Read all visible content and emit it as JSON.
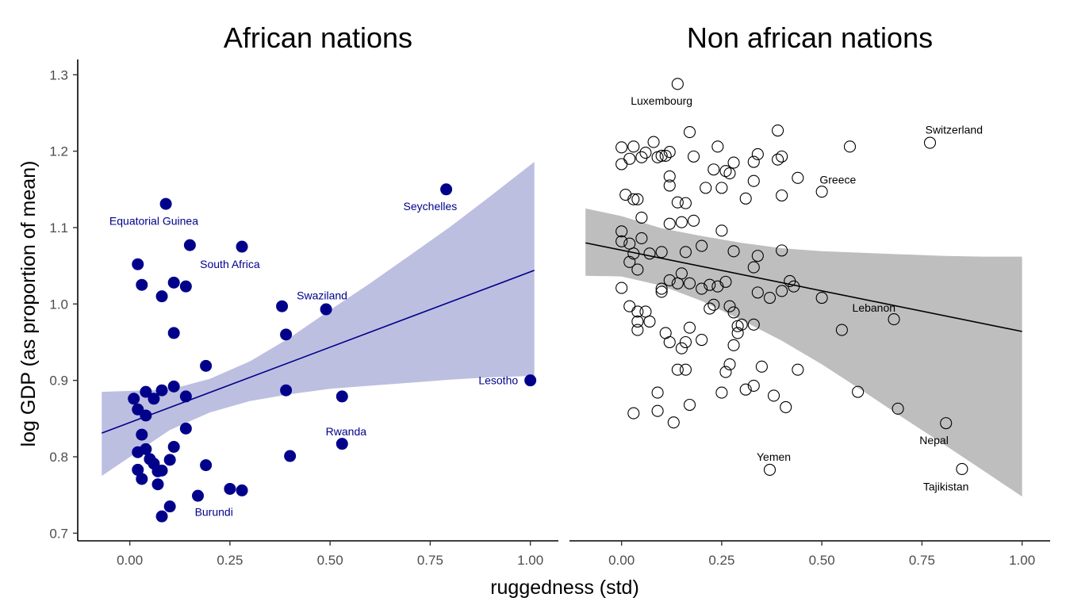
{
  "chart_data": {
    "type": "scatter",
    "xlabel": "ruggedness (std)",
    "ylabel": "log GDP (as proportion of mean)",
    "xlim": [
      -0.13,
      1.07
    ],
    "ylim": [
      0.69,
      1.32
    ],
    "x_ticks": [
      "0.00",
      "0.25",
      "0.50",
      "0.75",
      "1.00"
    ],
    "y_ticks": [
      "0.7",
      "0.8",
      "0.9",
      "1.0",
      "1.1",
      "1.2",
      "1.3"
    ],
    "grid": false,
    "panels": [
      {
        "title": "African nations",
        "point_style": "filled",
        "color": "#00008b",
        "band_color": "#bcbfe0",
        "points": [
          [
            0.09,
            1.131
          ],
          [
            0.79,
            1.15
          ],
          [
            0.15,
            1.077
          ],
          [
            0.28,
            1.075
          ],
          [
            0.02,
            1.052
          ],
          [
            0.03,
            1.025
          ],
          [
            0.11,
            1.028
          ],
          [
            0.14,
            1.023
          ],
          [
            0.08,
            1.01
          ],
          [
            0.38,
            0.997
          ],
          [
            0.49,
            0.993
          ],
          [
            0.39,
            0.96
          ],
          [
            0.11,
            0.962
          ],
          [
            0.19,
            0.919
          ],
          [
            1.0,
            0.9
          ],
          [
            0.04,
            0.885
          ],
          [
            0.08,
            0.887
          ],
          [
            0.11,
            0.892
          ],
          [
            0.39,
            0.887
          ],
          [
            0.53,
            0.879
          ],
          [
            0.01,
            0.876
          ],
          [
            0.06,
            0.876
          ],
          [
            0.14,
            0.879
          ],
          [
            0.02,
            0.862
          ],
          [
            0.04,
            0.854
          ],
          [
            0.14,
            0.837
          ],
          [
            0.03,
            0.829
          ],
          [
            0.53,
            0.817
          ],
          [
            0.11,
            0.813
          ],
          [
            0.04,
            0.81
          ],
          [
            0.02,
            0.806
          ],
          [
            0.05,
            0.797
          ],
          [
            0.1,
            0.796
          ],
          [
            0.4,
            0.801
          ],
          [
            0.06,
            0.791
          ],
          [
            0.07,
            0.781
          ],
          [
            0.08,
            0.782
          ],
          [
            0.19,
            0.789
          ],
          [
            0.02,
            0.783
          ],
          [
            0.03,
            0.771
          ],
          [
            0.07,
            0.764
          ],
          [
            0.25,
            0.758
          ],
          [
            0.28,
            0.756
          ],
          [
            0.17,
            0.749
          ],
          [
            0.1,
            0.735
          ],
          [
            0.08,
            0.722
          ]
        ],
        "labels": [
          {
            "text": "Equatorial Guinea",
            "x": 0.09,
            "y": 1.131,
            "dx": -0.03,
            "dy": -0.022
          },
          {
            "text": "Seychelles",
            "x": 0.79,
            "y": 1.15,
            "dx": -0.04,
            "dy": -0.022
          },
          {
            "text": "South Africa",
            "x": 0.15,
            "y": 1.077,
            "dx": 0.1,
            "dy": -0.025
          },
          {
            "text": "Swaziland",
            "x": 0.49,
            "y": 0.993,
            "dx": -0.01,
            "dy": 0.018
          },
          {
            "text": "Lesotho",
            "x": 1.0,
            "y": 0.9,
            "dx": -0.08,
            "dy": 0.0
          },
          {
            "text": "Rwanda",
            "x": 0.53,
            "y": 0.817,
            "dx": 0.01,
            "dy": 0.016
          },
          {
            "text": "Burundi",
            "x": 0.17,
            "y": 0.749,
            "dx": 0.04,
            "dy": -0.021
          }
        ],
        "fit": {
          "x": [
            -0.07,
            1.01
          ],
          "y": [
            0.831,
            1.044
          ]
        },
        "band": {
          "x": [
            -0.07,
            0.1,
            0.2,
            0.3,
            0.4,
            0.5,
            0.6,
            0.7,
            0.8,
            0.9,
            1.01
          ],
          "lower": [
            0.775,
            0.835,
            0.858,
            0.873,
            0.882,
            0.889,
            0.893,
            0.897,
            0.901,
            0.904,
            0.906
          ],
          "upper": [
            0.885,
            0.888,
            0.902,
            0.925,
            0.956,
            0.992,
            1.027,
            1.064,
            1.101,
            1.141,
            1.186
          ]
        }
      },
      {
        "title": "Non african nations",
        "point_style": "hollow",
        "color": "#000000",
        "band_color": "#bebebe",
        "points": [
          [
            0.14,
            1.288
          ],
          [
            0.77,
            1.211
          ],
          [
            0.39,
            1.227
          ],
          [
            0.17,
            1.225
          ],
          [
            0.57,
            1.206
          ],
          [
            0.0,
            1.205
          ],
          [
            0.03,
            1.206
          ],
          [
            0.08,
            1.212
          ],
          [
            0.24,
            1.206
          ],
          [
            0.12,
            1.199
          ],
          [
            0.06,
            1.198
          ],
          [
            0.1,
            1.194
          ],
          [
            0.05,
            1.192
          ],
          [
            0.02,
            1.19
          ],
          [
            0.09,
            1.192
          ],
          [
            0.11,
            1.194
          ],
          [
            0.18,
            1.193
          ],
          [
            0.28,
            1.185
          ],
          [
            0.34,
            1.196
          ],
          [
            0.4,
            1.193
          ],
          [
            0.39,
            1.189
          ],
          [
            0.33,
            1.186
          ],
          [
            0.0,
            1.183
          ],
          [
            0.23,
            1.176
          ],
          [
            0.26,
            1.174
          ],
          [
            0.27,
            1.171
          ],
          [
            0.12,
            1.167
          ],
          [
            0.33,
            1.161
          ],
          [
            0.44,
            1.165
          ],
          [
            0.12,
            1.155
          ],
          [
            0.21,
            1.152
          ],
          [
            0.25,
            1.152
          ],
          [
            0.5,
            1.147
          ],
          [
            0.4,
            1.142
          ],
          [
            0.01,
            1.143
          ],
          [
            0.03,
            1.137
          ],
          [
            0.04,
            1.137
          ],
          [
            0.31,
            1.138
          ],
          [
            0.14,
            1.133
          ],
          [
            0.16,
            1.132
          ],
          [
            0.05,
            1.113
          ],
          [
            0.15,
            1.107
          ],
          [
            0.18,
            1.109
          ],
          [
            0.12,
            1.105
          ],
          [
            0.25,
            1.096
          ],
          [
            0.0,
            1.095
          ],
          [
            0.0,
            1.082
          ],
          [
            0.02,
            1.079
          ],
          [
            0.05,
            1.086
          ],
          [
            0.2,
            1.076
          ],
          [
            0.03,
            1.066
          ],
          [
            0.07,
            1.066
          ],
          [
            0.1,
            1.068
          ],
          [
            0.16,
            1.068
          ],
          [
            0.28,
            1.069
          ],
          [
            0.34,
            1.063
          ],
          [
            0.4,
            1.07
          ],
          [
            0.02,
            1.055
          ],
          [
            0.04,
            1.045
          ],
          [
            0.33,
            1.048
          ],
          [
            0.15,
            1.04
          ],
          [
            0.12,
            1.031
          ],
          [
            0.14,
            1.027
          ],
          [
            0.17,
            1.027
          ],
          [
            0.22,
            1.025
          ],
          [
            0.24,
            1.023
          ],
          [
            0.26,
            1.029
          ],
          [
            0.42,
            1.03
          ],
          [
            0.43,
            1.023
          ],
          [
            0.0,
            1.021
          ],
          [
            0.1,
            1.02
          ],
          [
            0.1,
            1.016
          ],
          [
            0.2,
            1.02
          ],
          [
            0.34,
            1.015
          ],
          [
            0.37,
            1.008
          ],
          [
            0.4,
            1.017
          ],
          [
            0.5,
            1.008
          ],
          [
            0.02,
            0.997
          ],
          [
            0.04,
            0.99
          ],
          [
            0.06,
            0.99
          ],
          [
            0.22,
            0.994
          ],
          [
            0.23,
            0.999
          ],
          [
            0.27,
            0.997
          ],
          [
            0.28,
            0.989
          ],
          [
            0.68,
            0.98
          ],
          [
            0.04,
            0.977
          ],
          [
            0.07,
            0.977
          ],
          [
            0.29,
            0.971
          ],
          [
            0.3,
            0.973
          ],
          [
            0.33,
            0.973
          ],
          [
            0.04,
            0.966
          ],
          [
            0.11,
            0.962
          ],
          [
            0.17,
            0.969
          ],
          [
            0.29,
            0.962
          ],
          [
            0.55,
            0.966
          ],
          [
            0.12,
            0.95
          ],
          [
            0.16,
            0.95
          ],
          [
            0.2,
            0.953
          ],
          [
            0.15,
            0.942
          ],
          [
            0.28,
            0.946
          ],
          [
            0.27,
            0.921
          ],
          [
            0.14,
            0.914
          ],
          [
            0.16,
            0.914
          ],
          [
            0.26,
            0.911
          ],
          [
            0.35,
            0.918
          ],
          [
            0.44,
            0.914
          ],
          [
            0.31,
            0.888
          ],
          [
            0.33,
            0.893
          ],
          [
            0.09,
            0.884
          ],
          [
            0.25,
            0.884
          ],
          [
            0.38,
            0.88
          ],
          [
            0.59,
            0.885
          ],
          [
            0.17,
            0.868
          ],
          [
            0.41,
            0.865
          ],
          [
            0.69,
            0.863
          ],
          [
            0.03,
            0.857
          ],
          [
            0.09,
            0.86
          ],
          [
            0.13,
            0.845
          ],
          [
            0.81,
            0.844
          ],
          [
            0.37,
            0.783
          ],
          [
            0.85,
            0.784
          ]
        ],
        "labels": [
          {
            "text": "Luxembourg",
            "x": 0.14,
            "y": 1.288,
            "dx": -0.04,
            "dy": -0.022
          },
          {
            "text": "Switzerland",
            "x": 0.77,
            "y": 1.211,
            "dx": 0.06,
            "dy": 0.017
          },
          {
            "text": "Greece",
            "x": 0.5,
            "y": 1.147,
            "dx": 0.04,
            "dy": 0.016
          },
          {
            "text": "Lebanon",
            "x": 0.68,
            "y": 0.98,
            "dx": -0.05,
            "dy": 0.015
          },
          {
            "text": "Nepal",
            "x": 0.81,
            "y": 0.844,
            "dx": -0.03,
            "dy": -0.022
          },
          {
            "text": "Yemen",
            "x": 0.37,
            "y": 0.783,
            "dx": 0.01,
            "dy": 0.017
          },
          {
            "text": "Tajikistan",
            "x": 0.85,
            "y": 0.784,
            "dx": -0.04,
            "dy": -0.023
          }
        ],
        "fit": {
          "x": [
            -0.09,
            1.0
          ],
          "y": [
            1.08,
            0.964
          ]
        },
        "band": {
          "x": [
            -0.09,
            0.0,
            0.1,
            0.2,
            0.3,
            0.4,
            0.5,
            0.6,
            0.7,
            0.8,
            0.9,
            1.0
          ],
          "lower": [
            1.037,
            1.036,
            1.024,
            1.004,
            0.979,
            0.952,
            0.921,
            0.887,
            0.852,
            0.818,
            0.783,
            0.748
          ],
          "upper": [
            1.125,
            1.115,
            1.099,
            1.089,
            1.08,
            1.073,
            1.069,
            1.067,
            1.065,
            1.063,
            1.062,
            1.062
          ]
        }
      }
    ]
  }
}
